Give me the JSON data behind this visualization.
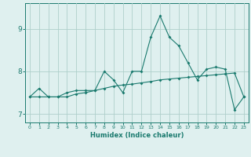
{
  "x_values": [
    0,
    1,
    2,
    3,
    4,
    5,
    6,
    7,
    8,
    9,
    10,
    11,
    12,
    13,
    14,
    15,
    16,
    17,
    18,
    19,
    20,
    21,
    22,
    23
  ],
  "line1_y": [
    7.4,
    7.6,
    7.4,
    7.4,
    7.5,
    7.55,
    7.55,
    7.55,
    8.0,
    7.8,
    7.5,
    8.0,
    8.0,
    8.8,
    9.3,
    8.8,
    8.6,
    8.2,
    7.8,
    8.05,
    8.1,
    8.05,
    7.1,
    7.4
  ],
  "line2_y": [
    7.4,
    7.4,
    7.4,
    7.4,
    7.4,
    7.47,
    7.5,
    7.55,
    7.6,
    7.65,
    7.68,
    7.7,
    7.73,
    7.76,
    7.8,
    7.82,
    7.84,
    7.86,
    7.88,
    7.9,
    7.92,
    7.94,
    7.96,
    7.4
  ],
  "line_color": "#1a7a6e",
  "bg_color": "#dff0ef",
  "grid_color": "#aecfcb",
  "ylabel_ticks": [
    7,
    8,
    9
  ],
  "xlabel": "Humidex (Indice chaleur)",
  "ylim": [
    6.8,
    9.6
  ],
  "xlim": [
    -0.5,
    23.5
  ],
  "x_tick_fontsize": 4.5,
  "y_tick_fontsize": 6.5,
  "xlabel_fontsize": 6.0
}
